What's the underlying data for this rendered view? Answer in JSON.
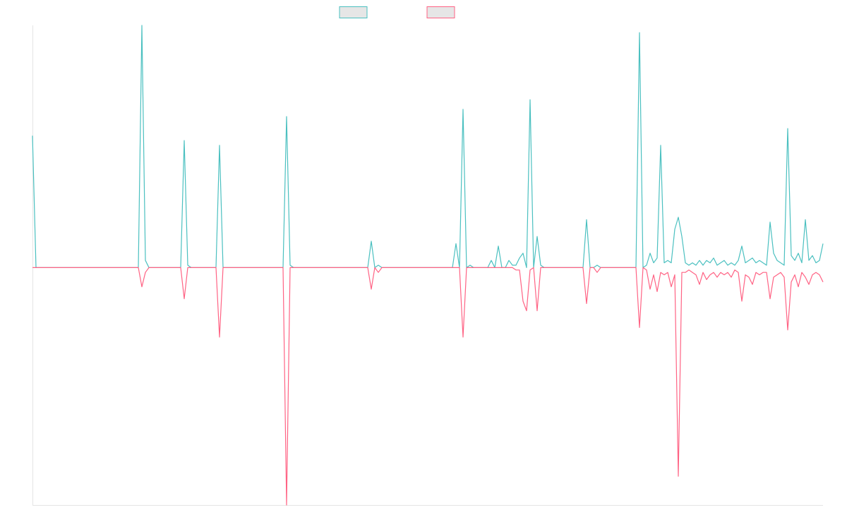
{
  "chart_data": {
    "type": "line",
    "ylim": [
      -99,
      101
    ],
    "series": [
      {
        "color": "#4bc0c0",
        "values": [
          55,
          0,
          0,
          0,
          0,
          0,
          0,
          0,
          0,
          0,
          0,
          0,
          0,
          0,
          0,
          0,
          0,
          0,
          0,
          0,
          0,
          0,
          0,
          0,
          0,
          0,
          0,
          0,
          0,
          0,
          0,
          101,
          3,
          0,
          0,
          0,
          0,
          0,
          0,
          0,
          0,
          0,
          0,
          53,
          1,
          0,
          0,
          0,
          0,
          0,
          0,
          0,
          0,
          51,
          0,
          0,
          0,
          0,
          0,
          0,
          0,
          0,
          0,
          0,
          0,
          0,
          0,
          0,
          0,
          0,
          0,
          0,
          63,
          1,
          0,
          0,
          0,
          0,
          0,
          0,
          0,
          0,
          0,
          0,
          0,
          0,
          0,
          0,
          0,
          0,
          0,
          0,
          0,
          0,
          0,
          0,
          11,
          0,
          1,
          0,
          0,
          0,
          0,
          0,
          0,
          0,
          0,
          0,
          0,
          0,
          0,
          0,
          0,
          0,
          0,
          0,
          0,
          0,
          0,
          0,
          10,
          0,
          66,
          0,
          1,
          0,
          0,
          0,
          0,
          0,
          3,
          0,
          9,
          0,
          0,
          3,
          1,
          1,
          4,
          6,
          0,
          70,
          0,
          13,
          1,
          0,
          0,
          0,
          0,
          0,
          0,
          0,
          0,
          0,
          0,
          0,
          0,
          20,
          0,
          0,
          1,
          0,
          0,
          0,
          0,
          0,
          0,
          0,
          0,
          0,
          0,
          0,
          98,
          0,
          1,
          6,
          2,
          4,
          51,
          2,
          3,
          2,
          16,
          21,
          13,
          2,
          1,
          2,
          1,
          3,
          1,
          3,
          2,
          4,
          1,
          2,
          3,
          1,
          2,
          1,
          3,
          9,
          2,
          3,
          4,
          2,
          3,
          2,
          1,
          19,
          6,
          3,
          2,
          1,
          58,
          5,
          3,
          6,
          2,
          20,
          3,
          5,
          2,
          3,
          10
        ]
      },
      {
        "color": "#ff6384",
        "values": [
          0,
          0,
          0,
          0,
          0,
          0,
          0,
          0,
          0,
          0,
          0,
          0,
          0,
          0,
          0,
          0,
          0,
          0,
          0,
          0,
          0,
          0,
          0,
          0,
          0,
          0,
          0,
          0,
          0,
          0,
          0,
          -8,
          -2,
          0,
          0,
          0,
          0,
          0,
          0,
          0,
          0,
          0,
          0,
          -13,
          0,
          0,
          0,
          0,
          0,
          0,
          0,
          0,
          0,
          -29,
          0,
          0,
          0,
          0,
          0,
          0,
          0,
          0,
          0,
          0,
          0,
          0,
          0,
          0,
          0,
          0,
          0,
          0,
          -99,
          0,
          0,
          0,
          0,
          0,
          0,
          0,
          0,
          0,
          0,
          0,
          0,
          0,
          0,
          0,
          0,
          0,
          0,
          0,
          0,
          0,
          0,
          0,
          -9,
          0,
          -2,
          0,
          0,
          0,
          0,
          0,
          0,
          0,
          0,
          0,
          0,
          0,
          0,
          0,
          0,
          0,
          0,
          0,
          0,
          0,
          0,
          0,
          0,
          0,
          -29,
          0,
          0,
          0,
          0,
          0,
          0,
          0,
          0,
          0,
          0,
          0,
          0,
          0,
          0,
          -1,
          -1,
          -14,
          -18,
          -1,
          0,
          -18,
          0,
          0,
          0,
          0,
          0,
          0,
          0,
          0,
          0,
          0,
          0,
          0,
          0,
          -15,
          0,
          0,
          -2,
          0,
          0,
          0,
          0,
          0,
          0,
          0,
          0,
          0,
          0,
          0,
          -25,
          0,
          -1,
          -9,
          -3,
          -10,
          -2,
          -3,
          -2,
          -8,
          -3,
          -87,
          -2,
          -2,
          -1,
          -2,
          -3,
          -7,
          -2,
          -5,
          -3,
          -2,
          -4,
          -2,
          -3,
          -2,
          -4,
          -1,
          -2,
          -14,
          -3,
          -4,
          -7,
          -2,
          -3,
          -2,
          -2,
          -13,
          -4,
          -3,
          -2,
          -4,
          -26,
          -6,
          -3,
          -8,
          -2,
          -4,
          -7,
          -3,
          -2,
          -3,
          -6
        ]
      }
    ]
  }
}
